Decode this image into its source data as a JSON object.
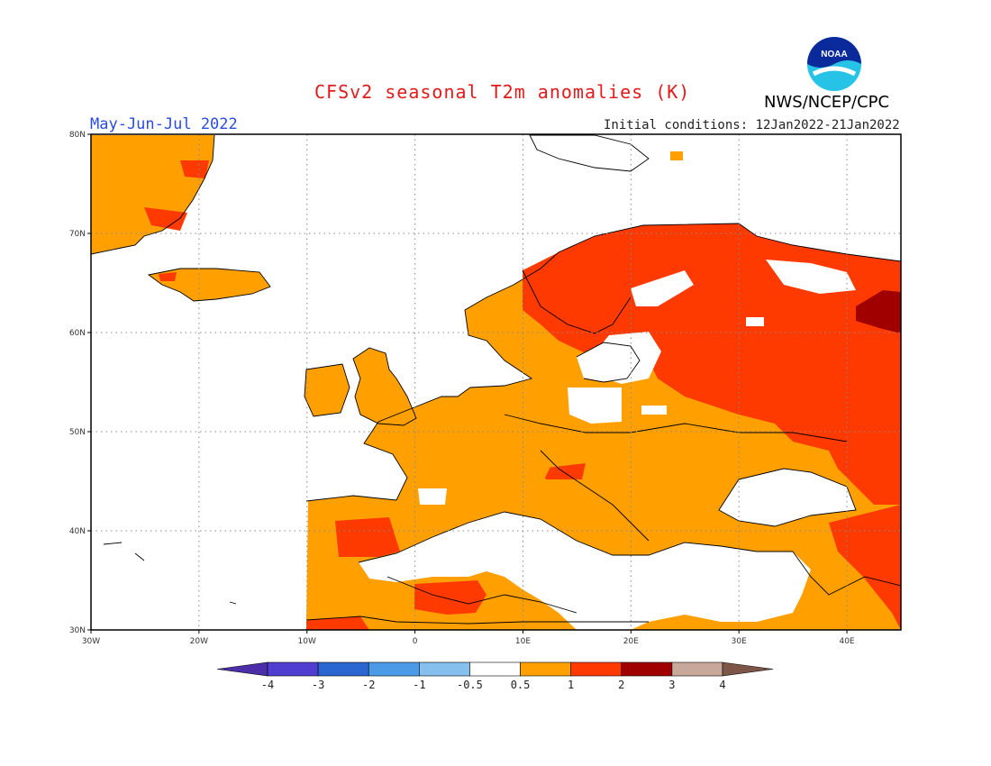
{
  "title": "CFSv2 seasonal T2m anomalies (K)",
  "period": "May-Jun-Jul 2022",
  "initial_conditions": "Initial conditions: 12Jan2022-21Jan2022",
  "agency": "NWS/NCEP/CPC",
  "logo": {
    "text": "NOAA",
    "icon": "noaa-logo"
  },
  "map": {
    "lon_range": [
      -30,
      45
    ],
    "lat_range": [
      30,
      80
    ],
    "lon_ticks": [
      "30W",
      "20W",
      "10W",
      "0",
      "10E",
      "20E",
      "30E",
      "40E"
    ],
    "lat_ticks": [
      "30N",
      "40N",
      "50N",
      "60N",
      "70N",
      "80N"
    ],
    "grid": "dotted"
  },
  "legend": {
    "labels": [
      "-4",
      "-3",
      "-2",
      "-1",
      "-0.5",
      "0.5",
      "1",
      "2",
      "3",
      "4"
    ],
    "colors": [
      "#4b2ea8",
      "#4f3ed0",
      "#2a66cf",
      "#4a9ae8",
      "#85c0ee",
      "#ffffff",
      "#ffa000",
      "#ff3a00",
      "#a00000",
      "#c8a89a",
      "#7d5648"
    ]
  },
  "colors": {
    "ocean": "#ffffff",
    "neutral": "#ffffff",
    "anom_0_5_1": "#ffa000",
    "anom_1_2": "#ff3a00",
    "anom_2_3": "#a00000",
    "title": "#e31a1c",
    "period": "#2b4be6"
  }
}
